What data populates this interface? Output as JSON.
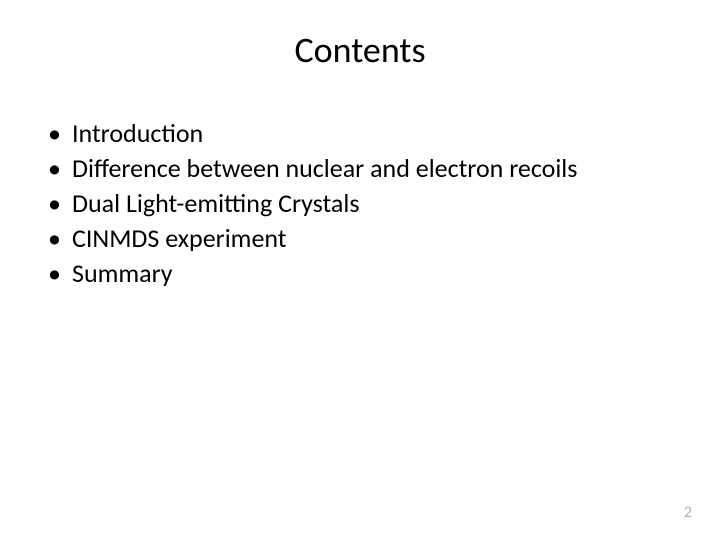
{
  "slide": {
    "title": "Contents",
    "bullets": [
      "Introduction",
      "Difference between nuclear and electron recoils",
      "Dual Light-emitting Crystals",
      "CINMDS experiment",
      "Summary"
    ],
    "page_number": "2",
    "title_fontsize": 36,
    "bullet_fontsize": 26,
    "text_color": "#000000",
    "page_number_color": "#b0b0b0",
    "background_color": "#ffffff"
  }
}
